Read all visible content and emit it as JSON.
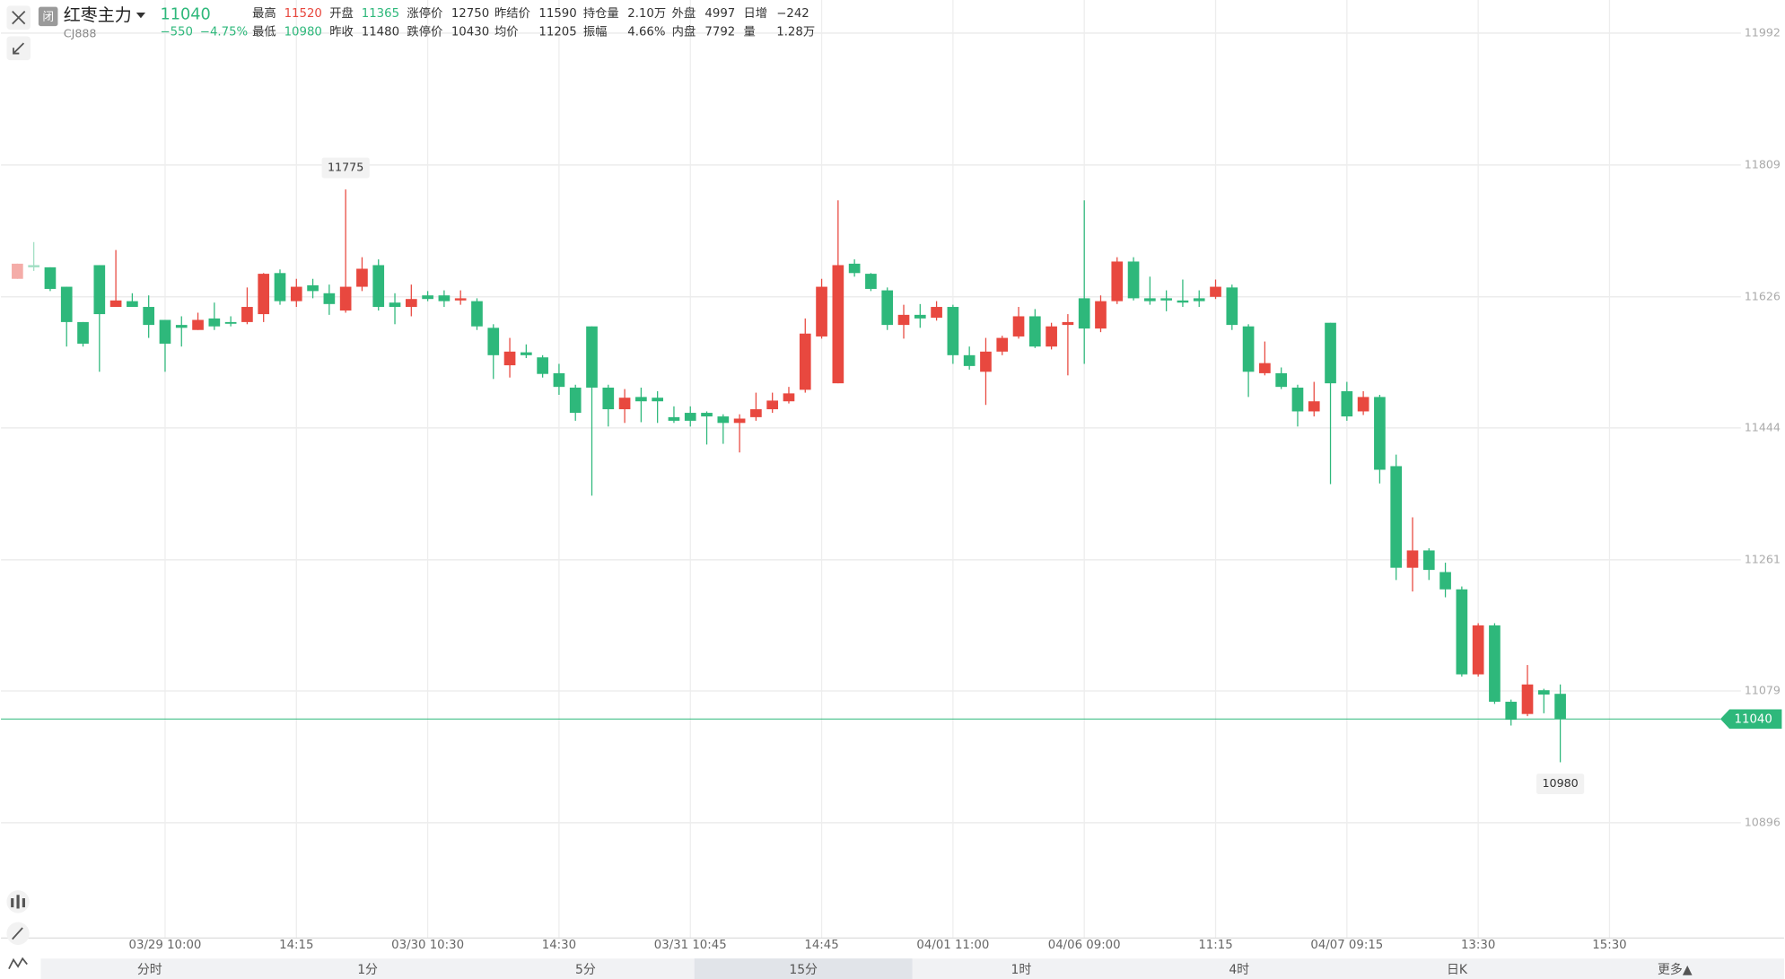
{
  "header": {
    "status": "闭",
    "name": "红枣主力",
    "code": "CJ888",
    "price": "11040",
    "change": "−550",
    "change_pct": "−4.75%",
    "stats": [
      [
        {
          "label": "最高",
          "value": "11520",
          "color": "#e8483f"
        },
        {
          "label": "开盘",
          "value": "11365",
          "color": "#2eb87b"
        },
        {
          "label": "涨停价",
          "value": "12750"
        },
        {
          "label": "昨结价",
          "value": "11590"
        },
        {
          "label": "持仓量",
          "value": "2.10万"
        },
        {
          "label": "外盘",
          "value": "4997"
        },
        {
          "label": "日增",
          "value": "−242"
        }
      ],
      [
        {
          "label": "最低",
          "value": "10980",
          "color": "#2eb87b"
        },
        {
          "label": "昨收",
          "value": "11480"
        },
        {
          "label": "跌停价",
          "value": "10430"
        },
        {
          "label": "均价",
          "value": "11205"
        },
        {
          "label": "振幅",
          "value": "4.66%"
        },
        {
          "label": "内盘",
          "value": "7792"
        },
        {
          "label": "量",
          "value": "1.28万"
        }
      ]
    ]
  },
  "chart_data": {
    "type": "candlestick",
    "up_color": "#e8483f",
    "down_color": "#2eb87b",
    "grid": true,
    "open": [
      11651,
      11670,
      11667,
      11640,
      11591,
      11670,
      11612,
      11620,
      11612,
      11594,
      11587,
      11580,
      11596,
      11591,
      11591,
      11602,
      11659,
      11620,
      11642,
      11631,
      11607,
      11640,
      11670,
      11618,
      11612,
      11628,
      11628,
      11621,
      11620,
      11583,
      11531,
      11549,
      11542,
      11520,
      11500,
      11585,
      11500,
      11470,
      11487,
      11486,
      11459,
      11465,
      11465,
      11460,
      11451,
      11459,
      11470,
      11481,
      11497,
      11571,
      11506,
      11672,
      11658,
      11635,
      11587,
      11601,
      11597,
      11612,
      11545,
      11522,
      11550,
      11571,
      11599,
      11557,
      11587,
      11624,
      11582,
      11620,
      11675,
      11624,
      11624,
      11621,
      11624,
      11626,
      11639,
      11585,
      11520,
      11520,
      11500,
      11467,
      11590,
      11495,
      11467,
      11487,
      11391,
      11250,
      11274,
      11244,
      11220,
      11102,
      11170,
      11064,
      11047,
      11080,
      11075
    ],
    "high": [
      11672,
      11702,
      11667,
      11640,
      11591,
      11670,
      11691,
      11631,
      11628,
      11594,
      11599,
      11604,
      11618,
      11599,
      11639,
      11659,
      11664,
      11651,
      11651,
      11643,
      11775,
      11681,
      11678,
      11631,
      11643,
      11634,
      11635,
      11635,
      11624,
      11588,
      11569,
      11560,
      11545,
      11533,
      11504,
      11585,
      11504,
      11498,
      11500,
      11495,
      11474,
      11474,
      11467,
      11463,
      11463,
      11493,
      11493,
      11501,
      11596,
      11651,
      11760,
      11678,
      11659,
      11639,
      11615,
      11616,
      11620,
      11615,
      11557,
      11569,
      11572,
      11612,
      11609,
      11590,
      11602,
      11760,
      11628,
      11681,
      11681,
      11654,
      11635,
      11650,
      11635,
      11650,
      11643,
      11588,
      11564,
      11528,
      11504,
      11508,
      11590,
      11508,
      11495,
      11490,
      11407,
      11320,
      11277,
      11257,
      11224,
      11173,
      11173,
      11067,
      11115,
      11082,
      11088
    ],
    "low": [
      11651,
      11662,
      11634,
      11557,
      11557,
      11522,
      11612,
      11612,
      11569,
      11522,
      11557,
      11580,
      11580,
      11585,
      11588,
      11591,
      11615,
      11612,
      11624,
      11601,
      11604,
      11634,
      11607,
      11588,
      11599,
      11620,
      11612,
      11615,
      11580,
      11512,
      11514,
      11541,
      11514,
      11490,
      11454,
      11350,
      11446,
      11451,
      11452,
      11451,
      11451,
      11446,
      11421,
      11422,
      11410,
      11454,
      11465,
      11478,
      11493,
      11568,
      11506,
      11654,
      11634,
      11580,
      11568,
      11583,
      11593,
      11533,
      11525,
      11476,
      11545,
      11568,
      11555,
      11553,
      11517,
      11533,
      11577,
      11616,
      11621,
      11615,
      11606,
      11612,
      11612,
      11623,
      11580,
      11487,
      11517,
      11498,
      11446,
      11460,
      11366,
      11454,
      11462,
      11367,
      11233,
      11217,
      11233,
      11209,
      11099,
      11099,
      11061,
      11031,
      11044,
      11048,
      10980
    ],
    "close": [
      11672,
      11667,
      11637,
      11591,
      11561,
      11602,
      11621,
      11612,
      11587,
      11561,
      11583,
      11594,
      11585,
      11590,
      11612,
      11658,
      11620,
      11640,
      11634,
      11616,
      11640,
      11665,
      11612,
      11612,
      11623,
      11623,
      11620,
      11624,
      11585,
      11545,
      11550,
      11545,
      11519,
      11501,
      11465,
      11500,
      11470,
      11486,
      11481,
      11481,
      11454,
      11454,
      11460,
      11451,
      11457,
      11470,
      11482,
      11492,
      11575,
      11640,
      11670,
      11659,
      11637,
      11587,
      11601,
      11596,
      11612,
      11545,
      11530,
      11550,
      11569,
      11599,
      11557,
      11585,
      11591,
      11582,
      11620,
      11675,
      11624,
      11620,
      11621,
      11618,
      11620,
      11640,
      11587,
      11522,
      11534,
      11501,
      11467,
      11481,
      11506,
      11460,
      11487,
      11386,
      11250,
      11274,
      11247,
      11220,
      11102,
      11170,
      11064,
      11039,
      11088,
      11074,
      11040
    ],
    "ylim": [
      10736,
      12038
    ],
    "yticks": [
      10896,
      11079,
      11261,
      11444,
      11626,
      11809,
      11992
    ],
    "xlim": [
      -1,
      105
    ],
    "xticks": [
      {
        "value": 9,
        "label": "03/29 10:00"
      },
      {
        "value": 17,
        "label": "14:15"
      },
      {
        "value": 25,
        "label": "03/30 10:30"
      },
      {
        "value": 33,
        "label": "14:30"
      },
      {
        "value": 41,
        "label": "03/31 10:45"
      },
      {
        "value": 49,
        "label": "14:45"
      },
      {
        "value": 57,
        "label": "04/01 11:00"
      },
      {
        "value": 65,
        "label": "04/06 09:00"
      },
      {
        "value": 73,
        "label": "11:15"
      },
      {
        "value": 81,
        "label": "04/07 09:15"
      },
      {
        "value": 89,
        "label": "13:30"
      },
      {
        "value": 97,
        "label": "15:30"
      }
    ]
  },
  "tabs": [
    "分时",
    "1分",
    "5分",
    "15分",
    "1时",
    "4时",
    "日K",
    "更多▲"
  ],
  "selected_tab": 3
}
